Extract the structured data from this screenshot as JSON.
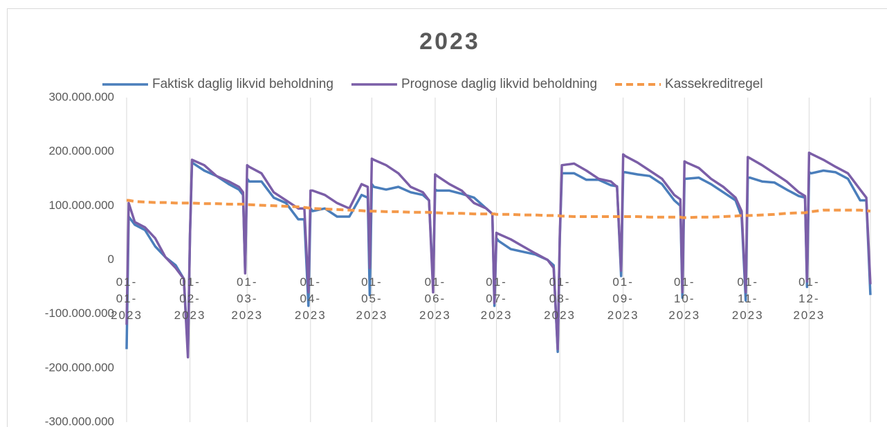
{
  "chart_data": {
    "type": "line",
    "title": "2023",
    "x": [
      "2023-01-01",
      "2023-01-02",
      "2023-01-05",
      "2023-01-10",
      "2023-01-15",
      "2023-01-20",
      "2023-01-25",
      "2023-01-29",
      "2023-01-31",
      "2023-02-01",
      "2023-02-02",
      "2023-02-08",
      "2023-02-14",
      "2023-02-20",
      "2023-02-25",
      "2023-02-27",
      "2023-02-28",
      "2023-03-01",
      "2023-03-02",
      "2023-03-08",
      "2023-03-14",
      "2023-03-20",
      "2023-03-26",
      "2023-03-29",
      "2023-03-31",
      "2023-04-01",
      "2023-04-02",
      "2023-04-08",
      "2023-04-14",
      "2023-04-20",
      "2023-04-26",
      "2023-04-29",
      "2023-04-30",
      "2023-05-01",
      "2023-05-02",
      "2023-05-08",
      "2023-05-14",
      "2023-05-20",
      "2023-05-26",
      "2023-05-29",
      "2023-05-31",
      "2023-06-01",
      "2023-06-02",
      "2023-06-08",
      "2023-06-14",
      "2023-06-20",
      "2023-06-26",
      "2023-06-29",
      "2023-06-30",
      "2023-07-01",
      "2023-07-02",
      "2023-07-08",
      "2023-07-14",
      "2023-07-20",
      "2023-07-26",
      "2023-07-29",
      "2023-07-31",
      "2023-08-01",
      "2023-08-02",
      "2023-08-08",
      "2023-08-14",
      "2023-08-20",
      "2023-08-26",
      "2023-08-29",
      "2023-08-31",
      "2023-09-01",
      "2023-09-02",
      "2023-09-08",
      "2023-09-14",
      "2023-09-20",
      "2023-09-26",
      "2023-09-29",
      "2023-09-30",
      "2023-10-01",
      "2023-10-02",
      "2023-10-08",
      "2023-10-14",
      "2023-10-20",
      "2023-10-26",
      "2023-10-29",
      "2023-10-31",
      "2023-11-01",
      "2023-11-02",
      "2023-11-08",
      "2023-11-14",
      "2023-11-20",
      "2023-11-26",
      "2023-11-29",
      "2023-11-30",
      "2023-12-01",
      "2023-12-02",
      "2023-12-08",
      "2023-12-14",
      "2023-12-20",
      "2023-12-26",
      "2023-12-29",
      "2023-12-31"
    ],
    "series": [
      {
        "name": "Faktisk daglig likvid beholdning",
        "color": "#4a7ebb",
        "dash": false,
        "values": [
          -165000000,
          80000000,
          65000000,
          55000000,
          25000000,
          5000000,
          -10000000,
          -35000000,
          -170000000,
          45000000,
          180000000,
          165000000,
          155000000,
          140000000,
          130000000,
          120000000,
          -20000000,
          150000000,
          145000000,
          145000000,
          115000000,
          105000000,
          75000000,
          75000000,
          -85000000,
          95000000,
          90000000,
          95000000,
          80000000,
          80000000,
          120000000,
          115000000,
          -65000000,
          140000000,
          135000000,
          130000000,
          135000000,
          125000000,
          120000000,
          110000000,
          -45000000,
          130000000,
          128000000,
          128000000,
          122000000,
          115000000,
          95000000,
          85000000,
          -85000000,
          40000000,
          35000000,
          20000000,
          15000000,
          10000000,
          0,
          -10000000,
          -170000000,
          40000000,
          160000000,
          160000000,
          148000000,
          148000000,
          138000000,
          136000000,
          -30000000,
          162000000,
          162000000,
          158000000,
          155000000,
          140000000,
          110000000,
          100000000,
          -70000000,
          150000000,
          150000000,
          152000000,
          140000000,
          125000000,
          110000000,
          80000000,
          -75000000,
          152000000,
          152000000,
          145000000,
          143000000,
          130000000,
          118000000,
          115000000,
          -50000000,
          162000000,
          160000000,
          165000000,
          162000000,
          150000000,
          110000000,
          110000000,
          -65000000
        ]
      },
      {
        "name": "Prognose daglig likvid beholdning",
        "color": "#7b5ea7",
        "dash": false,
        "values": [
          -120000000,
          105000000,
          70000000,
          60000000,
          40000000,
          5000000,
          -15000000,
          -35000000,
          -180000000,
          48000000,
          185000000,
          175000000,
          155000000,
          145000000,
          135000000,
          125000000,
          -25000000,
          175000000,
          172000000,
          160000000,
          125000000,
          110000000,
          95000000,
          95000000,
          -60000000,
          128000000,
          128000000,
          120000000,
          105000000,
          95000000,
          140000000,
          135000000,
          -15000000,
          187000000,
          185000000,
          175000000,
          160000000,
          135000000,
          125000000,
          110000000,
          -60000000,
          158000000,
          155000000,
          140000000,
          128000000,
          105000000,
          95000000,
          85000000,
          -80000000,
          50000000,
          48000000,
          38000000,
          25000000,
          12000000,
          0,
          -15000000,
          -165000000,
          45000000,
          175000000,
          178000000,
          165000000,
          150000000,
          145000000,
          135000000,
          -20000000,
          195000000,
          192000000,
          180000000,
          165000000,
          150000000,
          120000000,
          112000000,
          -60000000,
          182000000,
          180000000,
          170000000,
          150000000,
          135000000,
          115000000,
          90000000,
          -60000000,
          190000000,
          188000000,
          175000000,
          160000000,
          145000000,
          125000000,
          118000000,
          -40000000,
          198000000,
          196000000,
          185000000,
          172000000,
          160000000,
          130000000,
          115000000,
          -45000000
        ]
      },
      {
        "name": "Kassekreditregel",
        "color": "#f4994a",
        "dash": true,
        "values": [
          110000000,
          110000000,
          108000000,
          107000000,
          106000000,
          106000000,
          105000000,
          105000000,
          105000000,
          105000000,
          105000000,
          104000000,
          104000000,
          103000000,
          103000000,
          103000000,
          103000000,
          102000000,
          102000000,
          101000000,
          100000000,
          99000000,
          98000000,
          97000000,
          96000000,
          96000000,
          95000000,
          94000000,
          93000000,
          92000000,
          91000000,
          90000000,
          90000000,
          90000000,
          90000000,
          89000000,
          89000000,
          88000000,
          88000000,
          88000000,
          87000000,
          87000000,
          87000000,
          86000000,
          86000000,
          85000000,
          85000000,
          85000000,
          85000000,
          84000000,
          84000000,
          84000000,
          83000000,
          83000000,
          82000000,
          82000000,
          82000000,
          81000000,
          81000000,
          80000000,
          80000000,
          80000000,
          80000000,
          80000000,
          80000000,
          80000000,
          80000000,
          80000000,
          79000000,
          79000000,
          79000000,
          79000000,
          78000000,
          78000000,
          78000000,
          79000000,
          79000000,
          80000000,
          81000000,
          82000000,
          82000000,
          82000000,
          82000000,
          83000000,
          84000000,
          86000000,
          87000000,
          87000000,
          88000000,
          88000000,
          89000000,
          92000000,
          92000000,
          92000000,
          92000000,
          91000000,
          90000000
        ]
      }
    ],
    "xlim": [
      "2023-01-01",
      "2023-12-31"
    ],
    "xticks": [
      {
        "value": "2023-01-01",
        "label": "01-01-2023"
      },
      {
        "value": "2023-02-01",
        "label": "01-02-2023"
      },
      {
        "value": "2023-03-01",
        "label": "01-03-2023"
      },
      {
        "value": "2023-04-01",
        "label": "01-04-2023"
      },
      {
        "value": "2023-05-01",
        "label": "01-05-2023"
      },
      {
        "value": "2023-06-01",
        "label": "01-06-2023"
      },
      {
        "value": "2023-07-01",
        "label": "01-07-2023"
      },
      {
        "value": "2023-08-01",
        "label": "01-08-2023"
      },
      {
        "value": "2023-09-01",
        "label": "01-09-2023"
      },
      {
        "value": "2023-10-01",
        "label": "01-10-2023"
      },
      {
        "value": "2023-11-01",
        "label": "01-11-2023"
      },
      {
        "value": "2023-12-01",
        "label": "01-12-2023"
      }
    ],
    "ylim": [
      -300000000,
      300000000
    ],
    "yticks": [
      {
        "value": -300000000,
        "label": "-300.000.000"
      },
      {
        "value": -200000000,
        "label": "-200.000.000"
      },
      {
        "value": -100000000,
        "label": "-100.000.000"
      },
      0,
      {
        "value": 100000000,
        "label": "100.000.000"
      },
      {
        "value": 200000000,
        "label": "200.000.000"
      },
      {
        "value": 300000000,
        "label": "300.000.000"
      }
    ],
    "grid": "x",
    "legend": "top"
  }
}
